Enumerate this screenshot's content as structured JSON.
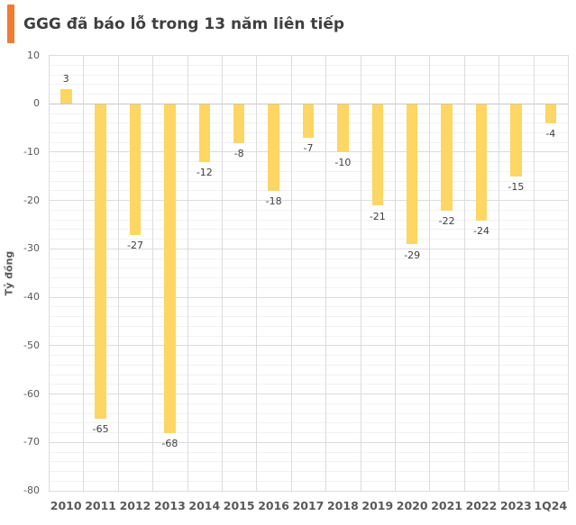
{
  "title": "GGG đã báo lỗ trong 13 năm liên tiếp",
  "colors": {
    "accent": "#ED7D31",
    "bar": "#FDD663",
    "grid_major": "#DCDCDC",
    "grid_minor": "#F2F2F2",
    "zero_line": "#C6C6C6",
    "axis_text": "#595959",
    "label_text": "#404040",
    "title_text": "#3F3F3F"
  },
  "chart_data": {
    "type": "bar",
    "title": "GGG đã báo lỗ trong 13 năm liên tiếp",
    "categories": [
      "2010",
      "2011",
      "2012",
      "2013",
      "2014",
      "2015",
      "2016",
      "2017",
      "2018",
      "2019",
      "2020",
      "2021",
      "2022",
      "2023",
      "1Q24"
    ],
    "values": [
      3,
      -65,
      -27,
      -68,
      -12,
      -8,
      -18,
      -7,
      -10,
      -21,
      -29,
      -22,
      -24,
      -15,
      -4
    ],
    "xlabel": "",
    "ylabel": "Tỷ đồng",
    "ylim": [
      -80,
      10
    ],
    "y_major_unit": 10,
    "y_minor_unit": 2,
    "y_tick_labels": [
      "10",
      "0",
      "-10",
      "-20",
      "-30",
      "-40",
      "-50",
      "-60",
      "-70",
      "-80"
    ],
    "grid": true,
    "data_labels": true,
    "legend": "none"
  }
}
